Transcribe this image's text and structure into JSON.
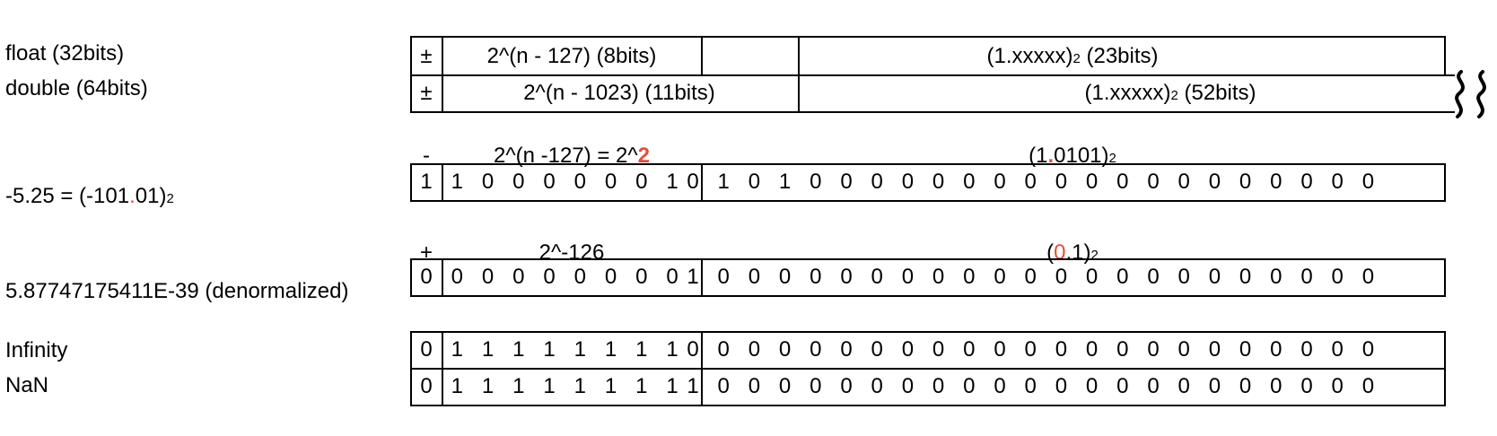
{
  "formats": {
    "float": {
      "label": "float (32bits)",
      "sign": "±",
      "exponent": "2^(n - 127) (8bits)",
      "mantissa_pre": "(1.xxxxx)",
      "mantissa_sub": "2",
      "mantissa_post": " (23bits)"
    },
    "double": {
      "label": "double (64bits)",
      "sign": "±",
      "exponent": "2^(n - 1023) (11bits)",
      "mantissa_pre": "(1.xxxxx)",
      "mantissa_sub": "2",
      "mantissa_post": " (52bits)"
    }
  },
  "examples": [
    {
      "label_pre": "-5.25 = (-101",
      "label_dot": ".",
      "label_post": "01)",
      "label_sub": "2",
      "sign_header": "-",
      "exp_header_pre": "2^(n -127) = 2^",
      "exp_header_highlight": "2",
      "mant_header_pre": "(1",
      "mant_header_highlight": ".",
      "mant_header_post": "0101)",
      "mant_header_sub": "2",
      "bits": [
        "1",
        "1",
        "0",
        "0",
        "0",
        "0",
        "0",
        "0",
        "1",
        "0",
        "1",
        "0",
        "1",
        "0",
        "0",
        "0",
        "0",
        "0",
        "0",
        "0",
        "0",
        "0",
        "0",
        "0",
        "0",
        "0",
        "0",
        "0",
        "0",
        "0",
        "0",
        "0"
      ]
    },
    {
      "label_pre": "5.87747175411E-39 (denormalized)",
      "sign_header": "+",
      "exp_header_pre": "2^-126",
      "mant_header_pre": "(",
      "mant_header_highlight": "0",
      "mant_header_post": ".1)",
      "mant_header_sub": "2",
      "bits": [
        "0",
        "0",
        "0",
        "0",
        "0",
        "0",
        "0",
        "0",
        "0",
        "1",
        "0",
        "0",
        "0",
        "0",
        "0",
        "0",
        "0",
        "0",
        "0",
        "0",
        "0",
        "0",
        "0",
        "0",
        "0",
        "0",
        "0",
        "0",
        "0",
        "0",
        "0",
        "0"
      ]
    }
  ],
  "specials": [
    {
      "label": "Infinity",
      "bits": [
        "0",
        "1",
        "1",
        "1",
        "1",
        "1",
        "1",
        "1",
        "1",
        "0",
        "0",
        "0",
        "0",
        "0",
        "0",
        "0",
        "0",
        "0",
        "0",
        "0",
        "0",
        "0",
        "0",
        "0",
        "0",
        "0",
        "0",
        "0",
        "0",
        "0",
        "0",
        "0"
      ]
    },
    {
      "label": "NaN",
      "bits": [
        "0",
        "1",
        "1",
        "1",
        "1",
        "1",
        "1",
        "1",
        "1",
        "1",
        "0",
        "0",
        "0",
        "0",
        "0",
        "0",
        "0",
        "0",
        "0",
        "0",
        "0",
        "0",
        "0",
        "0",
        "0",
        "0",
        "0",
        "0",
        "0",
        "0",
        "0",
        "0"
      ]
    }
  ],
  "colors": {
    "highlight": "#e74c3c",
    "line": "#000000",
    "text": "#000000"
  },
  "icons": {
    "break_mark": "wavy-break-icon"
  }
}
